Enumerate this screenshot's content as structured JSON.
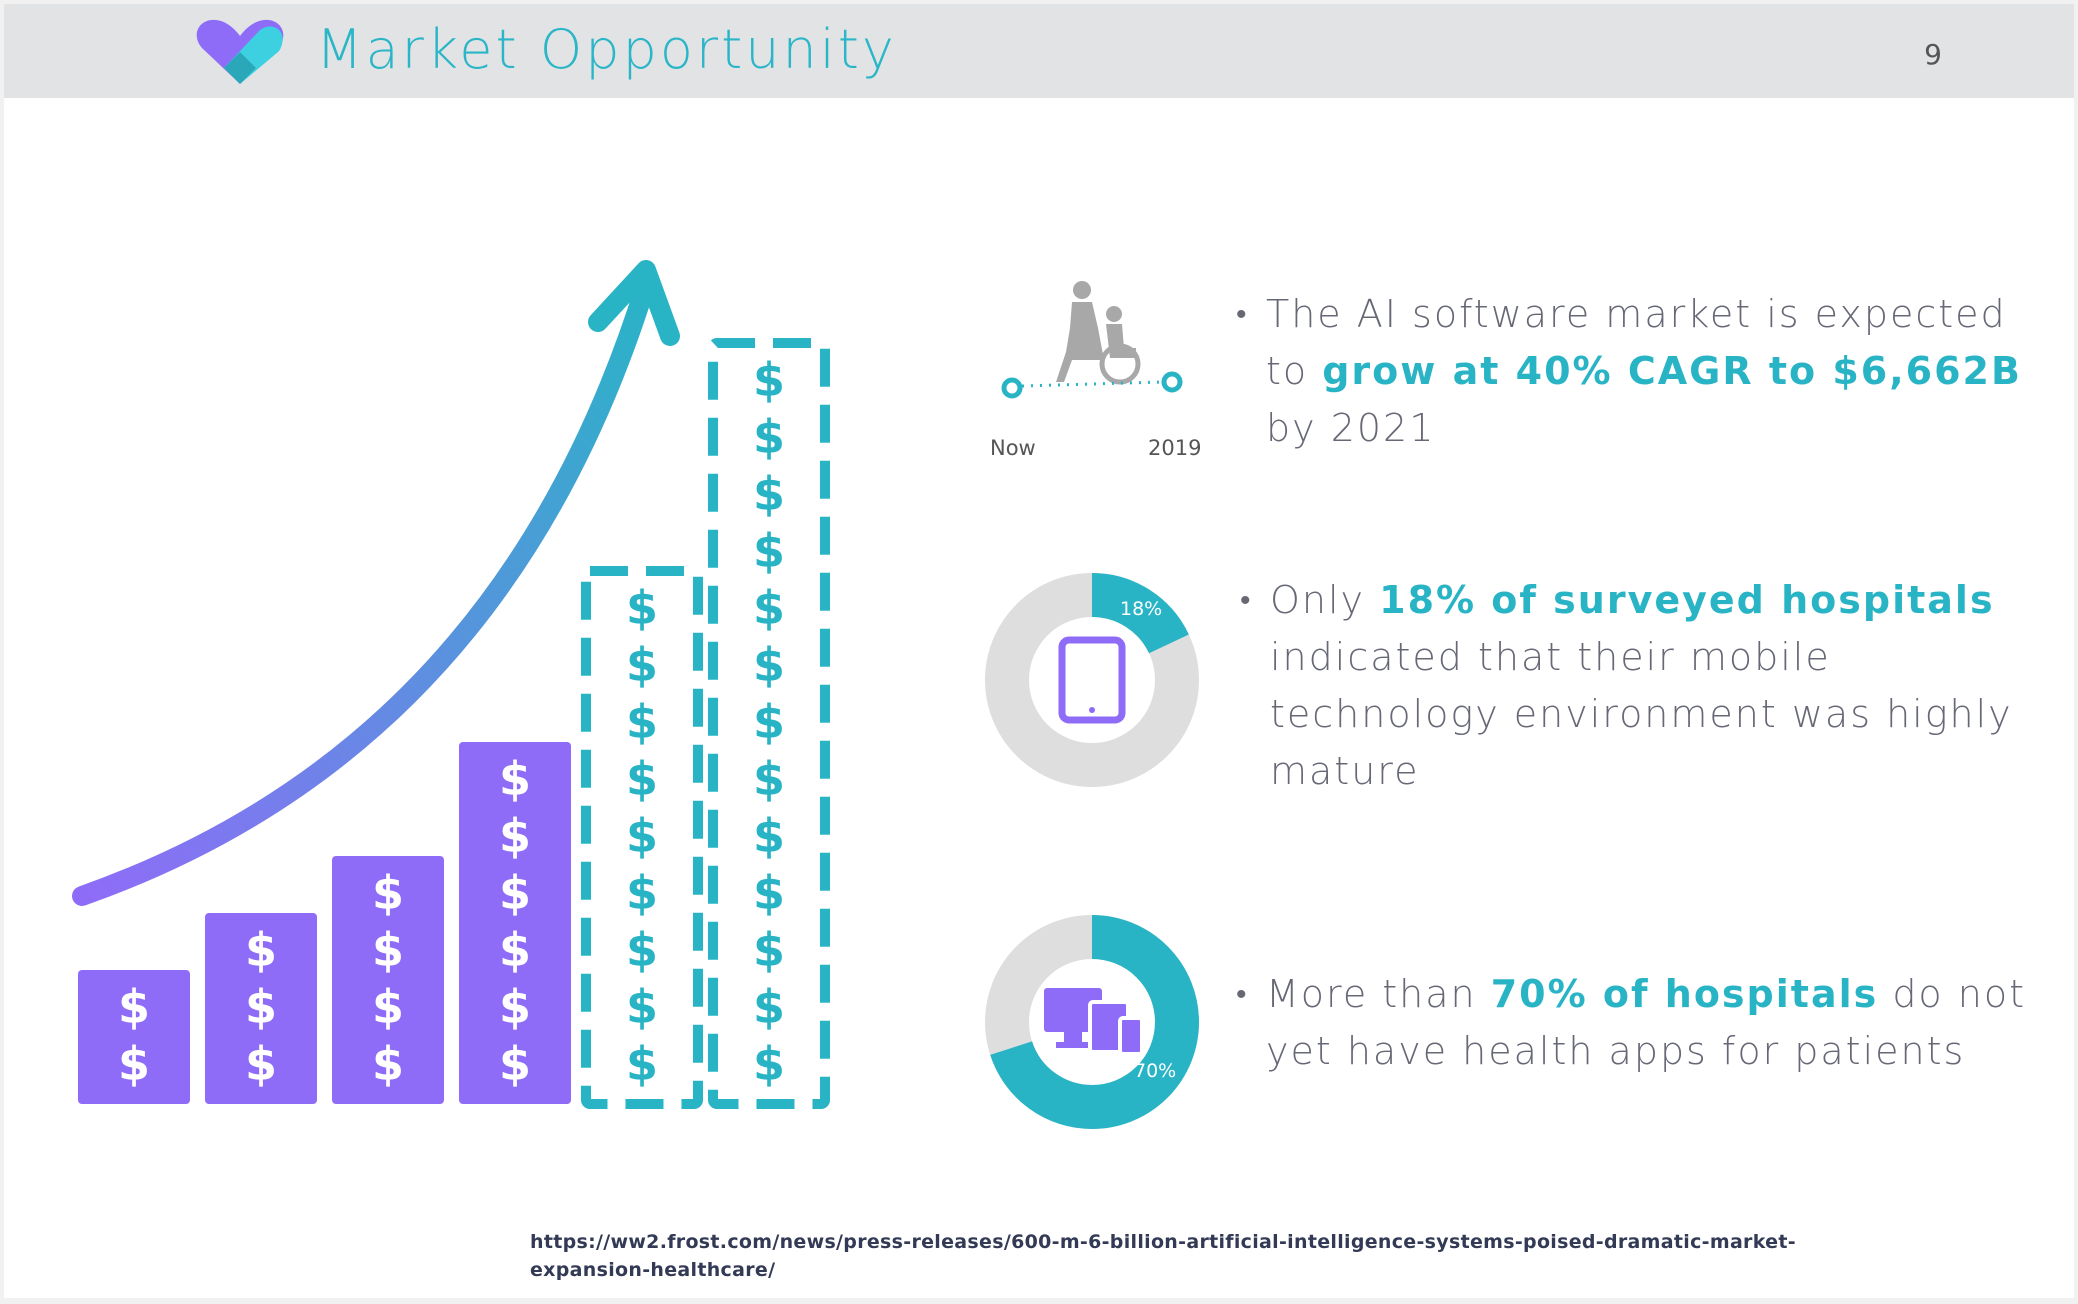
{
  "header": {
    "title": "Market Opportunity",
    "page_number": "9",
    "colors": {
      "accent": "#29b4c6",
      "purple": "#8f6cf8",
      "header_bg": "#e2e3e5"
    }
  },
  "growth_graphic": {
    "symbol": "$",
    "bars": [
      {
        "symbol_count": 2,
        "style": "solid"
      },
      {
        "symbol_count": 3,
        "style": "solid"
      },
      {
        "symbol_count": 4,
        "style": "solid"
      },
      {
        "symbol_count": 6,
        "style": "solid"
      },
      {
        "symbol_count": 9,
        "style": "dashed"
      },
      {
        "symbol_count": 13,
        "style": "dashed"
      }
    ]
  },
  "timeline": {
    "start_label": "Now",
    "end_label": "2019",
    "icon": "elderly-care-icon"
  },
  "bullets": [
    {
      "before": "The AI software market is expected to ",
      "highlight": "grow at 40% CAGR to $6,662B",
      "after": " by 2021"
    },
    {
      "before": "Only ",
      "highlight": "18% of surveyed hospitals",
      "after": " indicated that their mobile technology environment was highly mature",
      "stat": {
        "value": 18,
        "label": "18%",
        "icon": "tablet-icon"
      }
    },
    {
      "before": "More than ",
      "highlight": "70% of hospitals",
      "after": " do not yet have health apps for patients",
      "stat": {
        "value": 70,
        "label": "70%",
        "icon": "devices-icon"
      }
    }
  ],
  "source": {
    "line1": "https://ww2.frost.com/news/press-releases/600-m-6-billion-artificial-intelligence-systems-poised-dramatic-market-",
    "line2": "expansion-healthcare/"
  }
}
